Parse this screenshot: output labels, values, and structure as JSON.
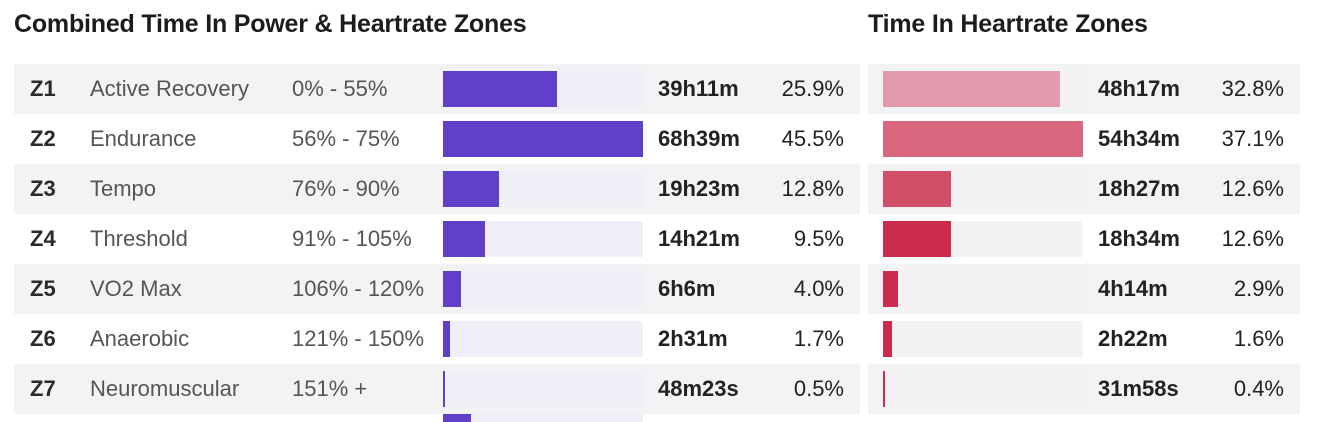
{
  "power_panel": {
    "title": "Combined Time In Power & Heartrate Zones",
    "bar_color": "#6040c8",
    "rows": [
      {
        "zone": "Z1",
        "name": "Active Recovery",
        "range": "0% - 55%",
        "time": "39h11m",
        "percent_label": "25.9%",
        "bar_fraction": 0.57
      },
      {
        "zone": "Z2",
        "name": "Endurance",
        "range": "56% - 75%",
        "time": "68h39m",
        "percent_label": "45.5%",
        "bar_fraction": 1.0
      },
      {
        "zone": "Z3",
        "name": "Tempo",
        "range": "76% - 90%",
        "time": "19h23m",
        "percent_label": "12.8%",
        "bar_fraction": 0.28
      },
      {
        "zone": "Z4",
        "name": "Threshold",
        "range": "91% - 105%",
        "time": "14h21m",
        "percent_label": "9.5%",
        "bar_fraction": 0.21
      },
      {
        "zone": "Z5",
        "name": "VO2 Max",
        "range": "106% - 120%",
        "time": "6h6m",
        "percent_label": "4.0%",
        "bar_fraction": 0.09
      },
      {
        "zone": "Z6",
        "name": "Anaerobic",
        "range": "121% - 150%",
        "time": "2h31m",
        "percent_label": "1.7%",
        "bar_fraction": 0.035
      },
      {
        "zone": "Z7",
        "name": "Neuromuscular",
        "range": "151% +",
        "time": "48m23s",
        "percent_label": "0.5%",
        "bar_fraction": 0.01
      }
    ],
    "extra_bar_fraction": 0.14
  },
  "hr_panel": {
    "title": "Time In Heartrate Zones",
    "rows": [
      {
        "time": "48h17m",
        "percent_label": "32.8%",
        "bar_fraction": 0.885,
        "color": "#e39aac"
      },
      {
        "time": "54h34m",
        "percent_label": "37.1%",
        "bar_fraction": 1.0,
        "color": "#d9687f"
      },
      {
        "time": "18h27m",
        "percent_label": "12.6%",
        "bar_fraction": 0.34,
        "color": "#d24f69"
      },
      {
        "time": "18h34m",
        "percent_label": "12.6%",
        "bar_fraction": 0.34,
        "color": "#cb2b4d"
      },
      {
        "time": "4h14m",
        "percent_label": "2.9%",
        "bar_fraction": 0.075,
        "color": "#cb2b4d"
      },
      {
        "time": "2h22m",
        "percent_label": "1.6%",
        "bar_fraction": 0.045,
        "color": "#cb2b4d"
      },
      {
        "time": "31m58s",
        "percent_label": "0.4%",
        "bar_fraction": 0.01,
        "color": "#cb2b4d"
      }
    ]
  },
  "chart_data": [
    {
      "type": "bar",
      "title": "Combined Time In Power & Heartrate Zones",
      "categories": [
        "Z1",
        "Z2",
        "Z3",
        "Z4",
        "Z5",
        "Z6",
        "Z7"
      ],
      "zone_names": [
        "Active Recovery",
        "Endurance",
        "Tempo",
        "Threshold",
        "VO2 Max",
        "Anaerobic",
        "Neuromuscular"
      ],
      "ranges": [
        "0% - 55%",
        "56% - 75%",
        "76% - 90%",
        "91% - 105%",
        "106% - 120%",
        "121% - 150%",
        "151% +"
      ],
      "times": [
        "39h11m",
        "68h39m",
        "19h23m",
        "14h21m",
        "6h6m",
        "2h31m",
        "48m23s"
      ],
      "values": [
        25.9,
        45.5,
        12.8,
        9.5,
        4.0,
        1.7,
        0.5
      ]
    },
    {
      "type": "bar",
      "title": "Time In Heartrate Zones",
      "times": [
        "48h17m",
        "54h34m",
        "18h27m",
        "18h34m",
        "4h14m",
        "2h22m",
        "31m58s"
      ],
      "values": [
        32.8,
        37.1,
        12.6,
        12.6,
        2.9,
        1.6,
        0.4
      ]
    }
  ]
}
